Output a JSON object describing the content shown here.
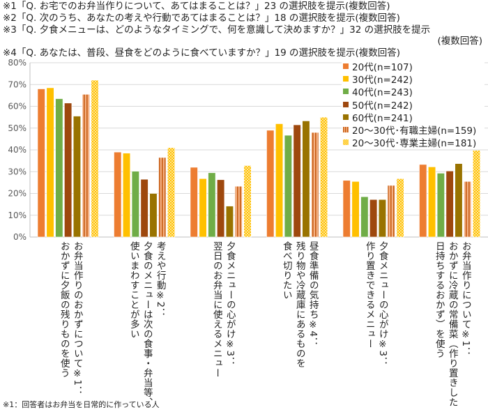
{
  "notes": [
    "※1「Q. お宅でのお弁当作りについて、あてはまることは？」23 の選択肢を提示(複数回答)",
    "※2「Q. 次のうち、あなたの考えや行動であてはまることは？」18 の選択肢を提示(複数回答)",
    "※3「Q. 夕食メニューは、どのようなタイミングで、何を意識して決めますか？」32 の選択肢を提示",
    "(複数回答)",
    "※4「Q. あなたは、普段、昼食をどのように食べていますか？」19 の選択肢を提示(複数回答)"
  ],
  "footnote": "※1：回答者はお弁当を日常的に作っている人",
  "chart_data": {
    "type": "bar",
    "ylim": [
      0,
      80
    ],
    "yticks": [
      "0%",
      "10%",
      "20%",
      "30%",
      "40%",
      "50%",
      "60%",
      "70%",
      "80%"
    ],
    "grid": true,
    "legend_position": "top-right",
    "categories": [
      [
        "お弁当作りのおかずについて※1：",
        "おかずに夕飯の残りものを使う"
      ],
      [
        "考えや行動※2：",
        "夕食のメニューは次の食事・弁当等、",
        "使いまわすことが多い"
      ],
      [
        "夕食メニューの心がけ※3：",
        "翌日のお弁当に使えるメニュー"
      ],
      [
        "昼食準備の気持ち※4：",
        "残り物や冷蔵庫にあるものを",
        "食べ切りたい"
      ],
      [
        "夕食メニューの心がけ※3：",
        "作り置きできるメニュー"
      ],
      [
        "お弁当作りについて※1：",
        "おかずに冷蔵の常備菜（作り置きした",
        "日持ちするおかず）を使う"
      ]
    ],
    "series": [
      {
        "name": "20代(n=107)",
        "color": "#ed7d31",
        "pattern": "solid",
        "values": [
          68,
          39,
          32,
          49,
          26,
          33.3
        ]
      },
      {
        "name": "30代(n=242)",
        "color": "#ffc000",
        "pattern": "solid",
        "values": [
          68.5,
          38.5,
          26.8,
          52,
          25.5,
          32.2
        ]
      },
      {
        "name": "40代(n=243)",
        "color": "#70ad47",
        "pattern": "solid",
        "values": [
          63.5,
          30.2,
          29.5,
          46.7,
          18.5,
          29.3
        ]
      },
      {
        "name": "50代(n=242)",
        "color": "#9e480e",
        "pattern": "solid",
        "values": [
          61.5,
          26.5,
          26.3,
          51.5,
          17.2,
          30.3
        ]
      },
      {
        "name": "60代(n=241)",
        "color": "#997300",
        "pattern": "solid",
        "values": [
          55.5,
          20,
          14.2,
          53.3,
          17.2,
          33.7
        ]
      },
      {
        "name": "20～30代･有職主婦(n=159)",
        "color": "#c55a11",
        "pattern": "stripes",
        "values": [
          65.5,
          36.5,
          23.3,
          48,
          23.7,
          25.5
        ]
      },
      {
        "name": "20～30代･専業主婦(n=181)",
        "color": "#ffc000",
        "pattern": "checker",
        "values": [
          72,
          41,
          32.8,
          55,
          26.8,
          39.8
        ]
      }
    ]
  }
}
